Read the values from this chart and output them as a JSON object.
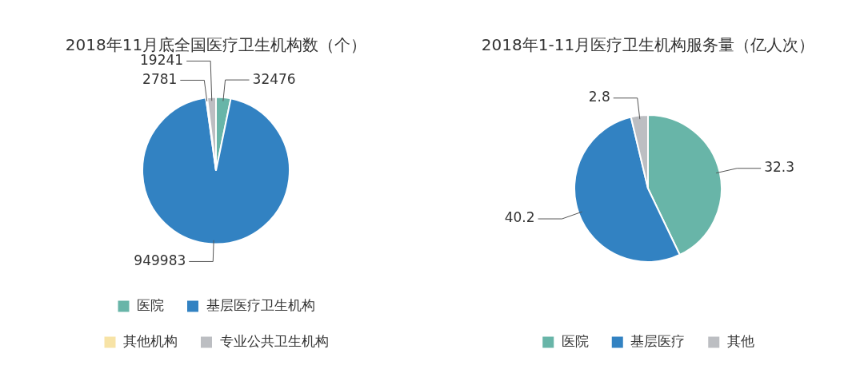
{
  "chart_data": [
    {
      "type": "pie",
      "title": "2018年11月底全国医疗卫生机构数（个）",
      "categories": [
        "医院",
        "基层医疗卫生机构",
        "其他机构",
        "专业公共卫生机构"
      ],
      "values": [
        32476,
        949983,
        2781,
        19241
      ],
      "colors": [
        "#68b5a8",
        "#3282c2",
        "#f7e3a6",
        "#bcbec2"
      ],
      "data_labels": true,
      "legend": "bottom"
    },
    {
      "type": "pie",
      "title": "2018年1-11月医疗卫生机构服务量（亿人次）",
      "categories": [
        "医院",
        "基层医疗",
        "其他"
      ],
      "values": [
        32.3,
        40.2,
        2.8
      ],
      "colors": [
        "#68b5a8",
        "#3282c2",
        "#bcbec2"
      ],
      "data_labels": true,
      "legend": "bottom"
    }
  ]
}
